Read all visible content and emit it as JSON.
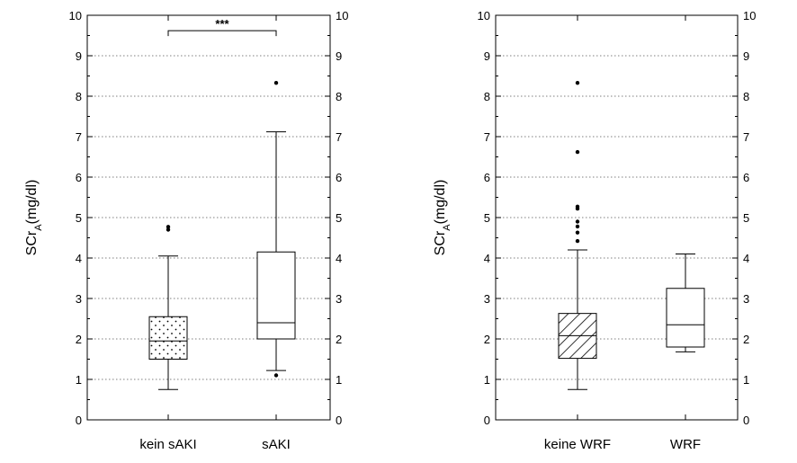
{
  "chart_data": [
    {
      "type": "box",
      "ylabel": "SCr",
      "ylabel_sub": "A",
      "ylabel_unit": "(mg/dl)",
      "ylim": [
        0,
        10
      ],
      "yticks": [
        "0",
        "1",
        "2",
        "3",
        "4",
        "5",
        "6",
        "7",
        "8",
        "9",
        "10"
      ],
      "grid": "horizontal-dotted",
      "categories": [
        "kein sAKI",
        "sAKI"
      ],
      "boxes": [
        {
          "category": "kein sAKI",
          "whisker_low": 0.75,
          "q1": 1.5,
          "median": 1.95,
          "q3": 2.55,
          "whisker_high": 4.05,
          "outliers": [
            4.7,
            4.77
          ],
          "fill": "dots"
        },
        {
          "category": "sAKI",
          "whisker_low": 1.22,
          "q1": 2.0,
          "median": 2.4,
          "q3": 4.15,
          "whisker_high": 7.12,
          "outliers": [
            1.1,
            8.33
          ],
          "fill": "none"
        }
      ],
      "significance": {
        "label": "***",
        "level": 9.62
      }
    },
    {
      "type": "box",
      "ylabel": "SCr",
      "ylabel_sub": "A",
      "ylabel_unit": "(mg/dl)",
      "ylim": [
        0,
        10
      ],
      "yticks": [
        "0",
        "1",
        "2",
        "3",
        "4",
        "5",
        "6",
        "7",
        "8",
        "9",
        "10"
      ],
      "grid": "horizontal-dotted",
      "categories": [
        "keine WRF",
        "WRF"
      ],
      "boxes": [
        {
          "category": "keine WRF",
          "whisker_low": 0.75,
          "q1": 1.52,
          "median": 2.08,
          "q3": 2.63,
          "whisker_high": 4.2,
          "outliers": [
            4.42,
            4.63,
            4.78,
            4.9,
            5.22,
            5.27,
            6.62,
            8.33
          ],
          "fill": "hatch"
        },
        {
          "category": "WRF",
          "whisker_low": 1.68,
          "q1": 1.8,
          "median": 2.35,
          "q3": 3.25,
          "whisker_high": 4.1,
          "outliers": [],
          "fill": "none"
        }
      ],
      "significance": null
    }
  ]
}
